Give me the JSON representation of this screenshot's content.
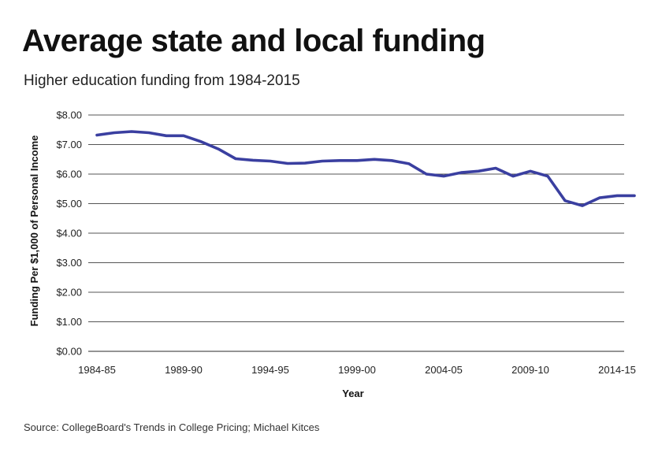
{
  "title": "Average state and local funding",
  "subtitle": "Higher education funding from 1984-2015",
  "source": "Source: CollegeBoard's Trends in College Pricing; Michael Kitces",
  "colors": {
    "line": "#3a3fa0",
    "grid": "#555555"
  },
  "chart_data": {
    "type": "line",
    "xlabel": "Year",
    "ylabel": "Funding Per $1,000 of Personal Income",
    "ylim": [
      0,
      8
    ],
    "y_ticks": [
      0,
      1,
      2,
      3,
      4,
      5,
      6,
      7,
      8
    ],
    "y_tick_labels": [
      "$0.00",
      "$1.00",
      "$2.00",
      "$3.00",
      "$4.00",
      "$5.00",
      "$6.00",
      "$7.00",
      "$8.00"
    ],
    "x_tick_labels": [
      "1984-85",
      "1989-90",
      "1994-95",
      "1999-00",
      "2004-05",
      "2009-10",
      "2014-15"
    ],
    "x_tick_years": [
      1984,
      1989,
      1994,
      1999,
      2004,
      2009,
      2014
    ],
    "grid": true,
    "series": [
      {
        "x": [
          1984,
          1985,
          1986,
          1987,
          1988,
          1989,
          1990,
          1991,
          1992,
          1993,
          1994,
          1995,
          1996,
          1997,
          1998,
          1999,
          2000,
          2001,
          2002,
          2003,
          2004,
          2005,
          2006,
          2007,
          2008,
          2009,
          2010,
          2011,
          2012,
          2013,
          2014,
          2015
        ],
        "values": [
          7.32,
          7.4,
          7.44,
          7.4,
          7.3,
          7.3,
          7.1,
          6.85,
          6.52,
          6.47,
          6.44,
          6.36,
          6.37,
          6.44,
          6.46,
          6.46,
          6.5,
          6.46,
          6.35,
          6.0,
          5.93,
          6.05,
          6.1,
          6.2,
          5.93,
          6.1,
          5.93,
          5.1,
          4.93,
          5.2,
          5.27,
          5.27
        ]
      }
    ]
  }
}
